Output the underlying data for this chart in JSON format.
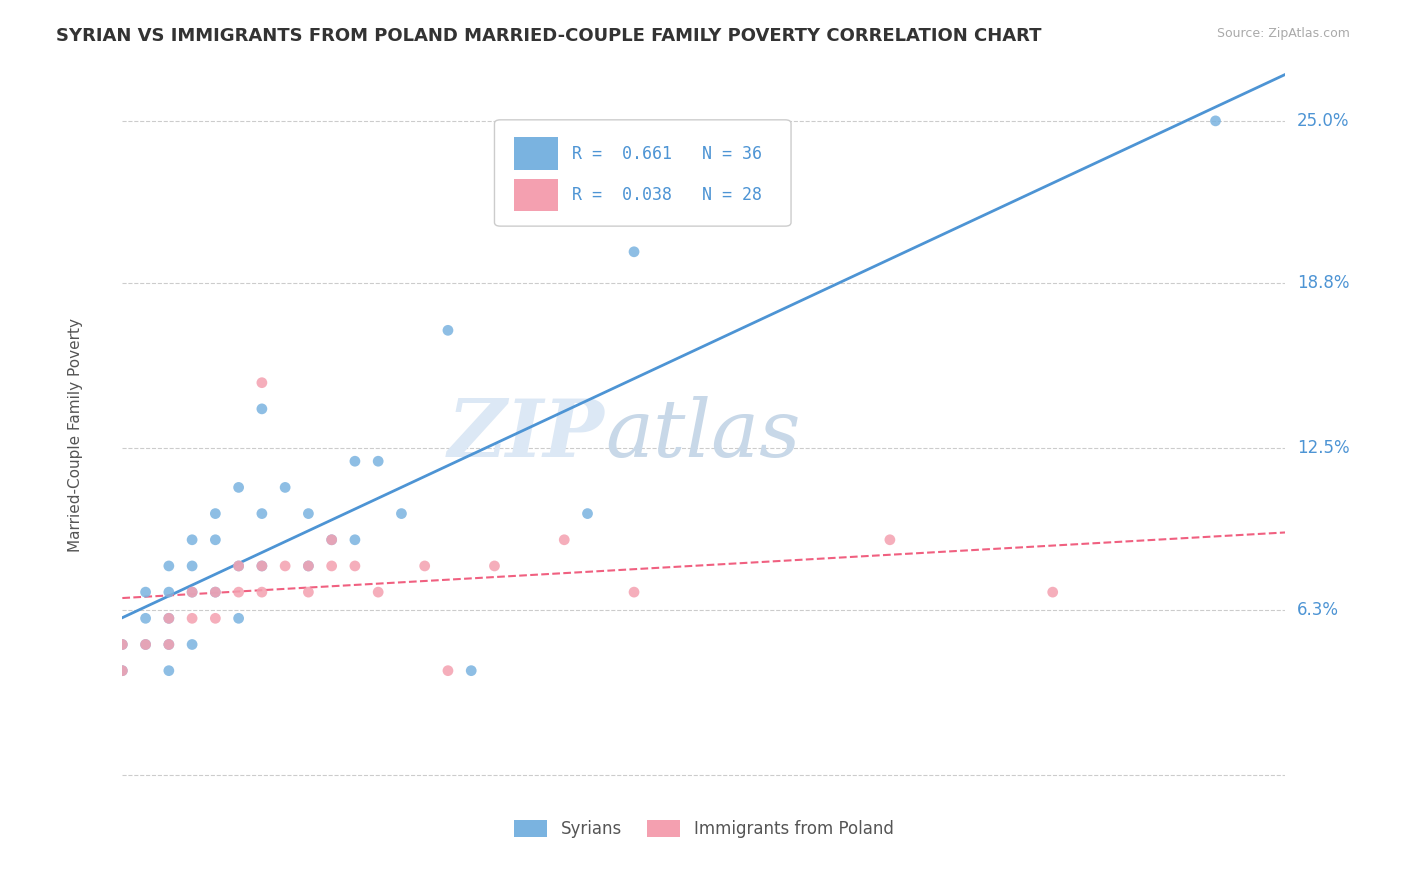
{
  "title": "SYRIAN VS IMMIGRANTS FROM POLAND MARRIED-COUPLE FAMILY POVERTY CORRELATION CHART",
  "source": "Source: ZipAtlas.com",
  "ylabel": "Married-Couple Family Poverty",
  "xlim": [
    0.0,
    0.5
  ],
  "ylim": [
    -0.01,
    0.27
  ],
  "yticks": [
    0.0,
    0.063,
    0.125,
    0.188,
    0.25
  ],
  "background_color": "#ffffff",
  "grid_color": "#cccccc",
  "watermark_zip": "ZIP",
  "watermark_atlas": "atlas",
  "syrian_color": "#7ab3e0",
  "poland_color": "#f4a0b0",
  "syrian_line_color": "#4d94d4",
  "poland_line_color": "#f06080",
  "R_syrian": 0.661,
  "N_syrian": 36,
  "R_poland": 0.038,
  "N_poland": 28,
  "syrian_scatter_x": [
    0.0,
    0.0,
    0.01,
    0.01,
    0.01,
    0.02,
    0.02,
    0.02,
    0.02,
    0.02,
    0.03,
    0.03,
    0.03,
    0.03,
    0.04,
    0.04,
    0.04,
    0.05,
    0.05,
    0.05,
    0.06,
    0.06,
    0.06,
    0.07,
    0.08,
    0.08,
    0.09,
    0.1,
    0.1,
    0.11,
    0.12,
    0.14,
    0.15,
    0.2,
    0.22,
    0.47
  ],
  "syrian_scatter_y": [
    0.05,
    0.04,
    0.07,
    0.06,
    0.05,
    0.08,
    0.07,
    0.06,
    0.05,
    0.04,
    0.09,
    0.08,
    0.07,
    0.05,
    0.1,
    0.09,
    0.07,
    0.11,
    0.08,
    0.06,
    0.14,
    0.1,
    0.08,
    0.11,
    0.1,
    0.08,
    0.09,
    0.12,
    0.09,
    0.12,
    0.1,
    0.17,
    0.04,
    0.1,
    0.2,
    0.25
  ],
  "poland_scatter_x": [
    0.0,
    0.0,
    0.01,
    0.02,
    0.02,
    0.03,
    0.03,
    0.04,
    0.04,
    0.05,
    0.05,
    0.06,
    0.06,
    0.06,
    0.07,
    0.08,
    0.08,
    0.09,
    0.09,
    0.1,
    0.11,
    0.13,
    0.14,
    0.16,
    0.19,
    0.22,
    0.33,
    0.4
  ],
  "poland_scatter_y": [
    0.05,
    0.04,
    0.05,
    0.06,
    0.05,
    0.07,
    0.06,
    0.07,
    0.06,
    0.08,
    0.07,
    0.15,
    0.08,
    0.07,
    0.08,
    0.08,
    0.07,
    0.09,
    0.08,
    0.08,
    0.07,
    0.08,
    0.04,
    0.08,
    0.09,
    0.07,
    0.09,
    0.07
  ],
  "title_fontsize": 13,
  "axis_label_color": "#555555",
  "tick_label_color": "#4d94d4",
  "legend_R_color": "#4d94d4"
}
